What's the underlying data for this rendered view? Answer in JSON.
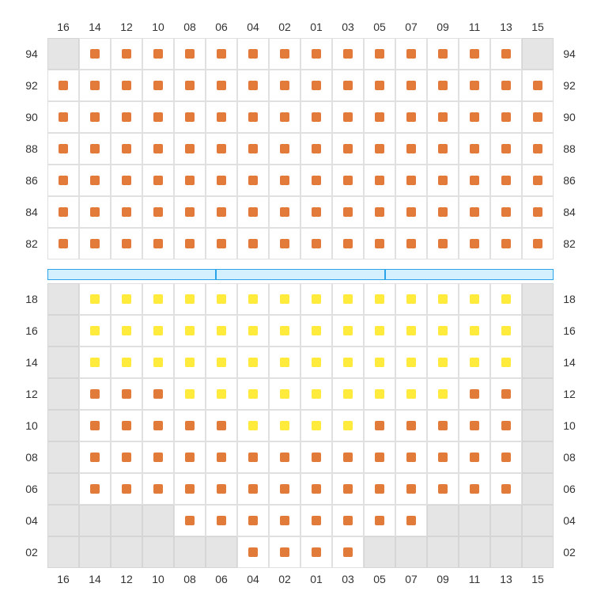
{
  "colors": {
    "orange": "#e27a3a",
    "yellow": "#ffeb3b",
    "gray_bg": "#e5e5e5",
    "cell_border": "#e0e0e0",
    "divider_fill": "#d4f0ff",
    "divider_border": "#2ba3e8",
    "text": "#333333"
  },
  "columns": [
    "16",
    "14",
    "12",
    "10",
    "08",
    "06",
    "04",
    "02",
    "01",
    "03",
    "05",
    "07",
    "09",
    "11",
    "13",
    "15"
  ],
  "upper": {
    "rows": [
      "94",
      "92",
      "90",
      "88",
      "86",
      "84",
      "82"
    ],
    "cells": [
      [
        "g",
        "o",
        "o",
        "o",
        "o",
        "o",
        "o",
        "o",
        "o",
        "o",
        "o",
        "o",
        "o",
        "o",
        "o",
        "g"
      ],
      [
        "o",
        "o",
        "o",
        "o",
        "o",
        "o",
        "o",
        "o",
        "o",
        "o",
        "o",
        "o",
        "o",
        "o",
        "o",
        "o"
      ],
      [
        "o",
        "o",
        "o",
        "o",
        "o",
        "o",
        "o",
        "o",
        "o",
        "o",
        "o",
        "o",
        "o",
        "o",
        "o",
        "o"
      ],
      [
        "o",
        "o",
        "o",
        "o",
        "o",
        "o",
        "o",
        "o",
        "o",
        "o",
        "o",
        "o",
        "o",
        "o",
        "o",
        "o"
      ],
      [
        "o",
        "o",
        "o",
        "o",
        "o",
        "o",
        "o",
        "o",
        "o",
        "o",
        "o",
        "o",
        "o",
        "o",
        "o",
        "o"
      ],
      [
        "o",
        "o",
        "o",
        "o",
        "o",
        "o",
        "o",
        "o",
        "o",
        "o",
        "o",
        "o",
        "o",
        "o",
        "o",
        "o"
      ],
      [
        "o",
        "o",
        "o",
        "o",
        "o",
        "o",
        "o",
        "o",
        "o",
        "o",
        "o",
        "o",
        "o",
        "o",
        "o",
        "o"
      ]
    ]
  },
  "divider_segments": 3,
  "lower": {
    "rows": [
      "18",
      "16",
      "14",
      "12",
      "10",
      "08",
      "06",
      "04",
      "02"
    ],
    "cells": [
      [
        "g",
        "y",
        "y",
        "y",
        "y",
        "y",
        "y",
        "y",
        "y",
        "y",
        "y",
        "y",
        "y",
        "y",
        "y",
        "g"
      ],
      [
        "g",
        "y",
        "y",
        "y",
        "y",
        "y",
        "y",
        "y",
        "y",
        "y",
        "y",
        "y",
        "y",
        "y",
        "y",
        "g"
      ],
      [
        "g",
        "y",
        "y",
        "y",
        "y",
        "y",
        "y",
        "y",
        "y",
        "y",
        "y",
        "y",
        "y",
        "y",
        "y",
        "g"
      ],
      [
        "g",
        "o",
        "o",
        "o",
        "y",
        "y",
        "y",
        "y",
        "y",
        "y",
        "y",
        "y",
        "y",
        "o",
        "o",
        "g"
      ],
      [
        "g",
        "o",
        "o",
        "o",
        "o",
        "o",
        "y",
        "y",
        "y",
        "y",
        "o",
        "o",
        "o",
        "o",
        "o",
        "g"
      ],
      [
        "g",
        "o",
        "o",
        "o",
        "o",
        "o",
        "o",
        "o",
        "o",
        "o",
        "o",
        "o",
        "o",
        "o",
        "o",
        "g"
      ],
      [
        "g",
        "o",
        "o",
        "o",
        "o",
        "o",
        "o",
        "o",
        "o",
        "o",
        "o",
        "o",
        "o",
        "o",
        "o",
        "g"
      ],
      [
        "g",
        "g",
        "g",
        "g",
        "o",
        "o",
        "o",
        "o",
        "o",
        "o",
        "o",
        "o",
        "g",
        "g",
        "g",
        "g"
      ],
      [
        "g",
        "g",
        "g",
        "g",
        "g",
        "g",
        "o",
        "o",
        "o",
        "o",
        "g",
        "g",
        "g",
        "g",
        "g",
        "g"
      ]
    ]
  }
}
